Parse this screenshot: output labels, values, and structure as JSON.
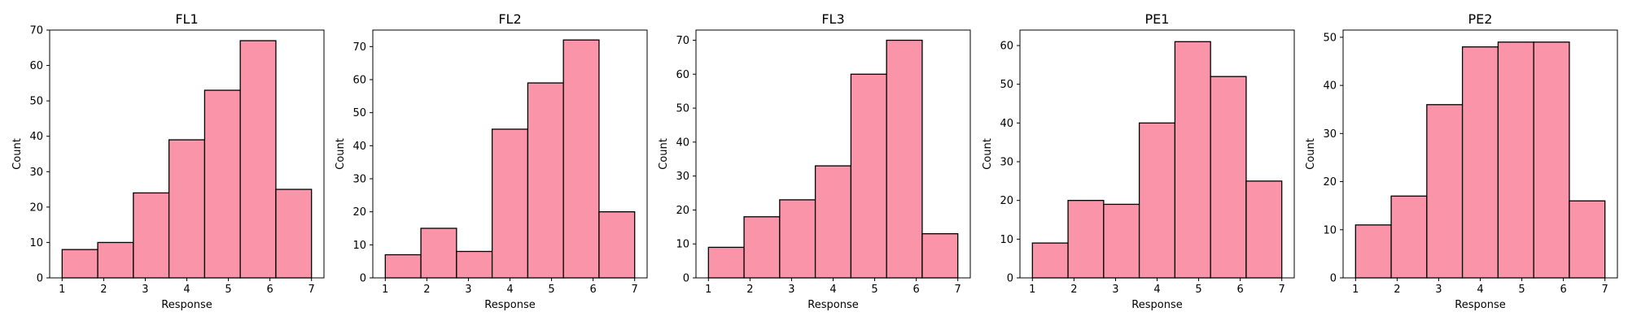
{
  "style": {
    "bar_fill": "#f994a9",
    "bar_edge": "#000000",
    "background": "#ffffff"
  },
  "chart_data": [
    {
      "type": "bar",
      "title": "FL1",
      "xlabel": "Response",
      "ylabel": "Count",
      "xlim": [
        1,
        7
      ],
      "ylim": [
        0,
        70
      ],
      "xticks": [
        1,
        2,
        3,
        4,
        5,
        6,
        7
      ],
      "yticks": [
        0,
        10,
        20,
        30,
        40,
        50,
        60,
        70
      ],
      "bin_edges": [
        1,
        1.857,
        2.714,
        3.571,
        4.429,
        5.286,
        6.143,
        7
      ],
      "values": [
        8,
        10,
        24,
        39,
        53,
        67,
        25
      ],
      "grid": false
    },
    {
      "type": "bar",
      "title": "FL2",
      "xlabel": "Response",
      "ylabel": "Count",
      "xlim": [
        1,
        7
      ],
      "ylim": [
        0,
        75
      ],
      "xticks": [
        1,
        2,
        3,
        4,
        5,
        6,
        7
      ],
      "yticks": [
        0,
        10,
        20,
        30,
        40,
        50,
        60,
        70
      ],
      "bin_edges": [
        1,
        1.857,
        2.714,
        3.571,
        4.429,
        5.286,
        6.143,
        7
      ],
      "values": [
        7,
        15,
        8,
        45,
        59,
        72,
        20
      ],
      "grid": false
    },
    {
      "type": "bar",
      "title": "FL3",
      "xlabel": "Response",
      "ylabel": "Count",
      "xlim": [
        1,
        7
      ],
      "ylim": [
        0,
        73
      ],
      "xticks": [
        1,
        2,
        3,
        4,
        5,
        6,
        7
      ],
      "yticks": [
        0,
        10,
        20,
        30,
        40,
        50,
        60,
        70
      ],
      "bin_edges": [
        1,
        1.857,
        2.714,
        3.571,
        4.429,
        5.286,
        6.143,
        7
      ],
      "values": [
        9,
        18,
        23,
        33,
        60,
        70,
        13
      ],
      "grid": false
    },
    {
      "type": "bar",
      "title": "PE1",
      "xlabel": "Response",
      "ylabel": "Count",
      "xlim": [
        1,
        7
      ],
      "ylim": [
        0,
        64
      ],
      "xticks": [
        1,
        2,
        3,
        4,
        5,
        6,
        7
      ],
      "yticks": [
        0,
        10,
        20,
        30,
        40,
        50,
        60
      ],
      "bin_edges": [
        1,
        1.857,
        2.714,
        3.571,
        4.429,
        5.286,
        6.143,
        7
      ],
      "values": [
        9,
        20,
        19,
        40,
        61,
        52,
        25
      ],
      "grid": false
    },
    {
      "type": "bar",
      "title": "PE2",
      "xlabel": "Response",
      "ylabel": "Count",
      "xlim": [
        1,
        7
      ],
      "ylim": [
        0,
        51.5
      ],
      "xticks": [
        1,
        2,
        3,
        4,
        5,
        6,
        7
      ],
      "yticks": [
        0,
        10,
        20,
        30,
        40,
        50
      ],
      "bin_edges": [
        1,
        1.857,
        2.714,
        3.571,
        4.429,
        5.286,
        6.143,
        7
      ],
      "values": [
        11,
        17,
        36,
        48,
        49,
        49,
        16
      ],
      "grid": false
    }
  ]
}
